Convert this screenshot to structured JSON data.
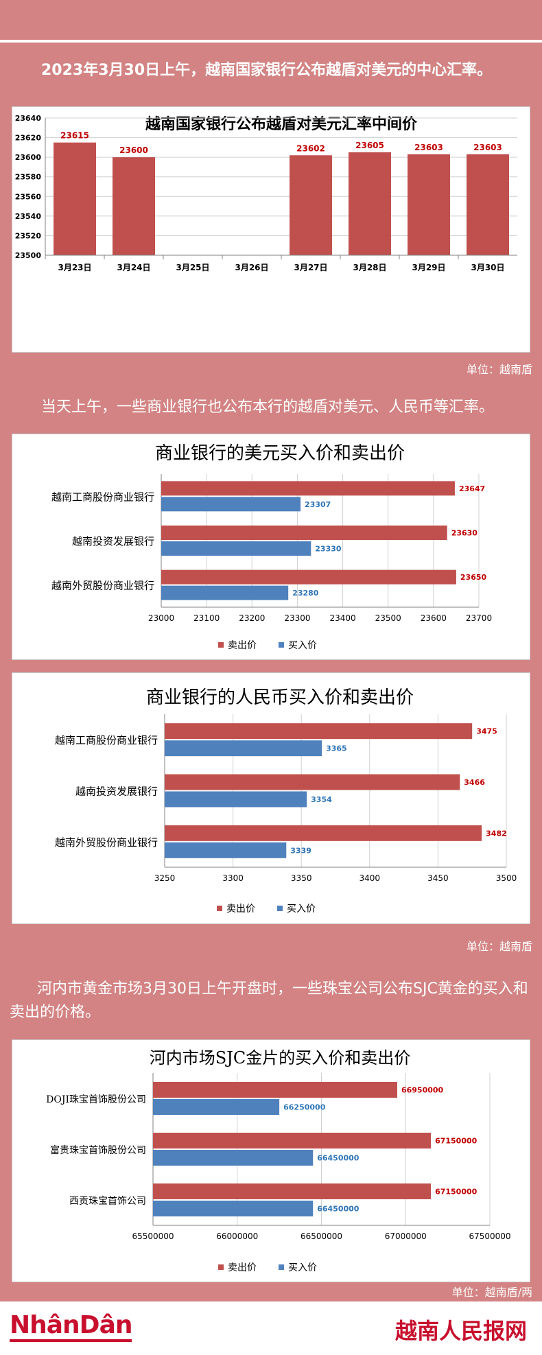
{
  "intro1": "2023年3月30日上午，越南国家银行公布越盾对美元的中心汇率。",
  "unit1": "单位：越南盾",
  "intro2": "当天上午，一些商业银行也公布本行的越盾对美元、人民币等汇率。",
  "unit2": "单位：越南盾",
  "intro3": "河内市黄金市场3月30日上午开盘时，一些珠宝公司公布SJC黄金的买入和卖出的价格。",
  "unit3": "单位：越南盾/两",
  "footer": {
    "left_logo": "NhânDân",
    "right_logo": "越南人民报网"
  },
  "colors": {
    "sell": "#c0504d",
    "buy": "#4f81bd",
    "sell_label": "#c00000",
    "buy_label": "#2e75b6"
  },
  "chart_data": [
    {
      "type": "bar",
      "title": "越南国家银行公布越盾对美元汇率中间价",
      "categories": [
        "3月23日",
        "3月24日",
        "3月25日",
        "3月26日",
        "3月27日",
        "3月28日",
        "3月29日",
        "3月30日"
      ],
      "values": [
        23615,
        23600,
        null,
        null,
        23602,
        23605,
        23603,
        23603
      ],
      "data_labels": [
        "23615",
        "23600",
        "",
        "",
        "23602",
        "23605",
        "23603",
        "23603"
      ],
      "ylim": [
        23500,
        23640
      ],
      "yticks": [
        "23500",
        "23520",
        "23540",
        "23560",
        "23580",
        "23600",
        "23620",
        "23640"
      ],
      "grid": true
    },
    {
      "type": "bar",
      "orientation": "horizontal",
      "title": "商业银行的美元买入价和卖出价",
      "categories": [
        "越南工商股份商业银行",
        "越南投资发展银行",
        "越南外贸股份商业银行"
      ],
      "series": [
        {
          "name": "卖出价",
          "values": [
            23647,
            23630,
            23650
          ]
        },
        {
          "name": "买入价",
          "values": [
            23307,
            23330,
            23280
          ]
        }
      ],
      "xlim": [
        23000,
        23700
      ],
      "xticks": [
        "23000",
        "23100",
        "23200",
        "23300",
        "23400",
        "23500",
        "23600",
        "23700"
      ],
      "legend": "bottom",
      "grid": true
    },
    {
      "type": "bar",
      "orientation": "horizontal",
      "title": "商业银行的人民币买入价和卖出价",
      "categories": [
        "越南工商股份商业银行",
        "越南投资发展银行",
        "越南外贸股份商业银行"
      ],
      "series": [
        {
          "name": "卖出价",
          "values": [
            3475,
            3466,
            3482
          ]
        },
        {
          "name": "买入价",
          "values": [
            3365,
            3354,
            3339
          ]
        }
      ],
      "xlim": [
        3250,
        3500
      ],
      "xticks": [
        "3250",
        "3300",
        "3350",
        "3400",
        "3450",
        "3500"
      ],
      "legend": "bottom",
      "grid": true
    },
    {
      "type": "bar",
      "orientation": "horizontal",
      "title": "河内市场SJC金片的买入价和卖出价",
      "categories": [
        "DOJI珠宝首饰股份公司",
        "富贵珠宝首饰股份公司",
        "西贡珠宝首饰公司"
      ],
      "series": [
        {
          "name": "卖出价",
          "values": [
            66950000,
            67150000,
            67150000
          ]
        },
        {
          "name": "买入价",
          "values": [
            66250000,
            66450000,
            66450000
          ]
        }
      ],
      "xlim": [
        65500000,
        67500000
      ],
      "xticks": [
        "65500000",
        "66000000",
        "66500000",
        "67000000",
        "67500000"
      ],
      "legend": "bottom",
      "grid": true
    }
  ]
}
